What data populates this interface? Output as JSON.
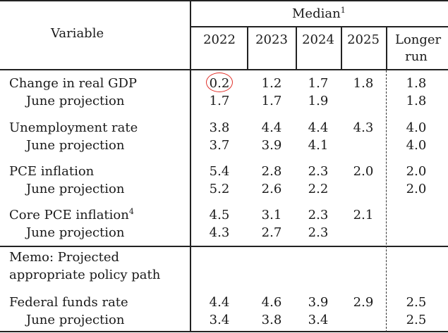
{
  "header": {
    "variable": "Variable",
    "median": "Median",
    "median_sup": "1",
    "years": [
      "2022",
      "2023",
      "2024",
      "2025"
    ],
    "longer_run_line1": "Longer",
    "longer_run_line2": "run"
  },
  "rows": [
    {
      "label": "Change in real GDP",
      "sup": "",
      "values": [
        "0.2",
        "1.2",
        "1.7",
        "1.8",
        "1.8"
      ]
    },
    {
      "label": "June projection",
      "sup": "",
      "values": [
        "1.7",
        "1.7",
        "1.9",
        "",
        "1.8"
      ]
    },
    {
      "label": "Unemployment rate",
      "sup": "",
      "values": [
        "3.8",
        "4.4",
        "4.4",
        "4.3",
        "4.0"
      ]
    },
    {
      "label": "June projection",
      "sup": "",
      "values": [
        "3.7",
        "3.9",
        "4.1",
        "",
        "4.0"
      ]
    },
    {
      "label": "PCE inflation",
      "sup": "",
      "values": [
        "5.4",
        "2.8",
        "2.3",
        "2.0",
        "2.0"
      ]
    },
    {
      "label": "June projection",
      "sup": "",
      "values": [
        "5.2",
        "2.6",
        "2.2",
        "",
        "2.0"
      ]
    },
    {
      "label": "Core PCE inflation",
      "sup": "4",
      "values": [
        "4.5",
        "3.1",
        "2.3",
        "2.1",
        ""
      ]
    },
    {
      "label": "June projection",
      "sup": "",
      "values": [
        "4.3",
        "2.7",
        "2.3",
        "",
        ""
      ]
    }
  ],
  "memo": {
    "line1": "Memo: Projected",
    "line2": "appropriate policy path"
  },
  "memo_rows": [
    {
      "label": "Federal funds rate",
      "values": [
        "4.4",
        "4.6",
        "3.9",
        "2.9",
        "2.5"
      ]
    },
    {
      "label": "June projection",
      "values": [
        "3.4",
        "3.8",
        "3.4",
        "",
        "2.5"
      ]
    }
  ],
  "highlight_color": "#e0302a"
}
